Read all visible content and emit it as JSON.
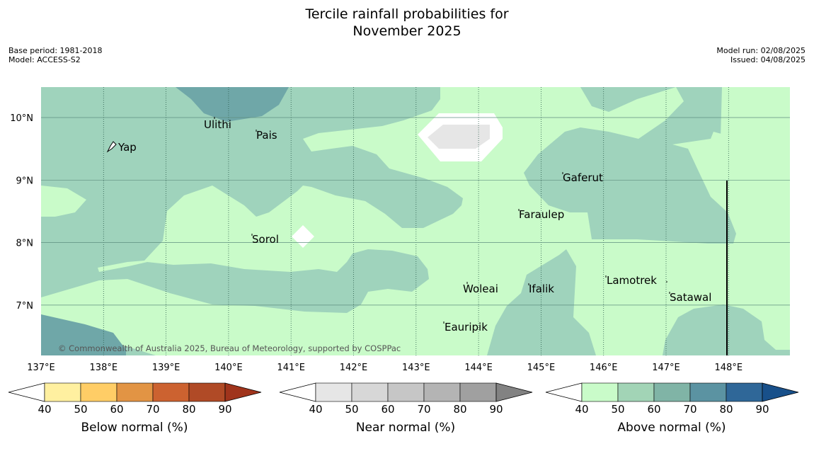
{
  "title_line1": "Tercile rainfall probabilities for",
  "title_line2": "November 2025",
  "meta_left": {
    "base_period": "Base period: 1981-2018",
    "model": "Model: ACCESS-S2"
  },
  "meta_right": {
    "model_run": "Model run: 02/08/2025",
    "issued": "Issued: 04/08/2025"
  },
  "map": {
    "lon_ticks": [
      "137°E",
      "138°E",
      "139°E",
      "140°E",
      "141°E",
      "142°E",
      "143°E",
      "144°E",
      "145°E",
      "146°E",
      "147°E",
      "148°E"
    ],
    "lat_ticks": [
      "10°N",
      "9°N",
      "8°N",
      "7°N"
    ],
    "places": [
      "Ulithi",
      "Pais",
      "Yap",
      "Gaferut",
      "Faraulep",
      "Sorol",
      "Lamotrek",
      "Woleai",
      "Ifalik",
      "Satawal",
      "Eauripik"
    ],
    "attribution": "© Commonwealth of Australia 2025, Bureau of Meteorology, supported by COSPPac",
    "colors": {
      "above_50_60": "#c9fbc9",
      "above_60_70": "#9fd3bc",
      "above_70_80": "#6fa7a8",
      "near_50_60": "#e6e6e6",
      "ocean_outline": "#ffffff"
    }
  },
  "colorbars": [
    {
      "label": "Below normal (%)",
      "ticks": [
        "40",
        "50",
        "60",
        "70",
        "80",
        "90"
      ],
      "colors": [
        "#ffffff",
        "#fff0a0",
        "#ffcd66",
        "#e29444",
        "#cc6230",
        "#b04a26",
        "#a0341c"
      ]
    },
    {
      "label": "Near normal (%)",
      "ticks": [
        "40",
        "50",
        "60",
        "70",
        "80",
        "90"
      ],
      "colors": [
        "#ffffff",
        "#e6e6e6",
        "#d7d7d7",
        "#c6c6c6",
        "#b4b4b4",
        "#a0a0a0",
        "#828282"
      ]
    },
    {
      "label": "Above normal (%)",
      "ticks": [
        "40",
        "50",
        "60",
        "70",
        "80",
        "90"
      ],
      "colors": [
        "#ffffff",
        "#c9fbc9",
        "#a2d4b6",
        "#80b4a6",
        "#5b93a2",
        "#2f6798",
        "#18508a"
      ]
    }
  ]
}
